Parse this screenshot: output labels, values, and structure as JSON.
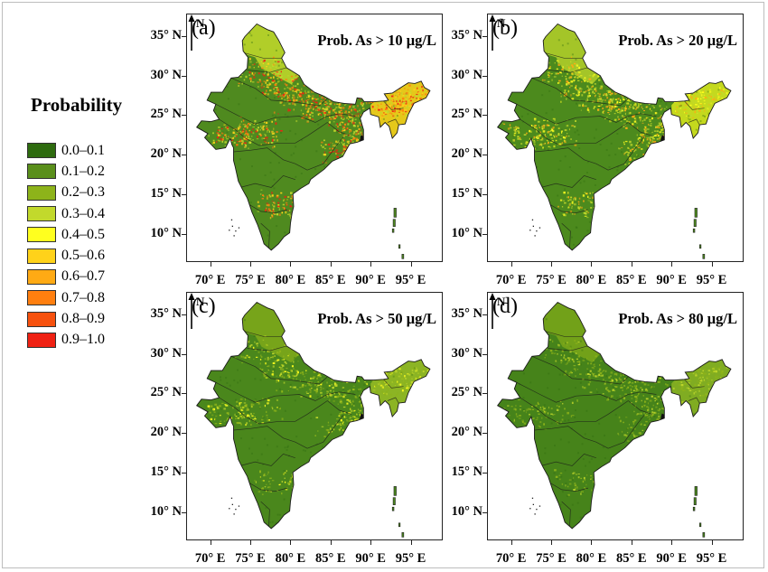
{
  "legend": {
    "title": "Probability",
    "items": [
      {
        "label": "0.0–0.1",
        "color": "#2e6b0f"
      },
      {
        "label": "0.1–0.2",
        "color": "#5a8f1b"
      },
      {
        "label": "0.2–0.3",
        "color": "#8db31a"
      },
      {
        "label": "0.3–0.4",
        "color": "#c2d92c"
      },
      {
        "label": "0.4–0.5",
        "color": "#ffff1f"
      },
      {
        "label": "0.5–0.6",
        "color": "#ffd21a"
      },
      {
        "label": "0.6–0.7",
        "color": "#ffaa14"
      },
      {
        "label": "0.7–0.8",
        "color": "#ff7f0f"
      },
      {
        "label": "0.8–0.9",
        "color": "#f7510e"
      },
      {
        "label": "0.9–1.0",
        "color": "#ef2113"
      }
    ]
  },
  "axes": {
    "lat_labels": [
      "35° N",
      "30° N",
      "25° N",
      "20° N",
      "15° N",
      "10° N"
    ],
    "lon_labels": [
      "70° E",
      "75° E",
      "80° E",
      "85° E",
      "90° E",
      "95° E"
    ]
  },
  "north_label": "N",
  "panels": [
    {
      "letter": "(a)",
      "title": "Prob. As > 10 μg/L",
      "base": "#4f8a1f",
      "hotspots": [
        "#c2d92c",
        "#ffd21a",
        "#ff7f0f",
        "#ef2113"
      ],
      "intensity": 1.0
    },
    {
      "letter": "(b)",
      "title": "Prob. As > 20 μg/L",
      "base": "#4c8a1d",
      "hotspots": [
        "#c2d92c",
        "#ffff1f",
        "#ffaa14"
      ],
      "intensity": 0.65
    },
    {
      "letter": "(c)",
      "title": "Prob. As > 50 μg/L",
      "base": "#4a871c",
      "hotspots": [
        "#8db31a",
        "#c2d92c",
        "#ffff1f"
      ],
      "intensity": 0.4
    },
    {
      "letter": "(d)",
      "title": "Prob. As > 80 μg/L",
      "base": "#46831a",
      "hotspots": [
        "#8db31a",
        "#c2d92c"
      ],
      "intensity": 0.25
    }
  ]
}
